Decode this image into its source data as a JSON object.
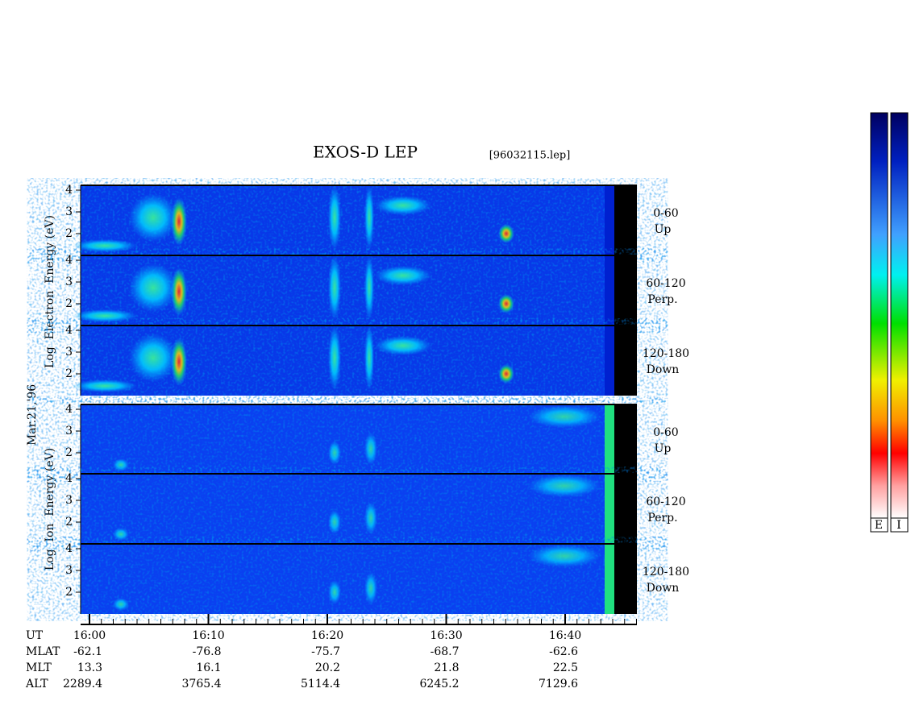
{
  "title": "EXOS-D LEP",
  "file": "[96032115.lep]",
  "date_label": "Mar.21,'96",
  "electron_axis_label": "Log  Electron  Energy (eV)",
  "ion_axis_label": "Log  Ion  Energy (eV)",
  "yticks": [
    2,
    3,
    4
  ],
  "panels": [
    {
      "angle": "0-60",
      "direction": "Up"
    },
    {
      "angle": "60-120",
      "direction": "Perp."
    },
    {
      "angle": "120-180",
      "direction": "Down"
    },
    {
      "angle": "0-60",
      "direction": "Up"
    },
    {
      "angle": "60-120",
      "direction": "Perp."
    },
    {
      "angle": "120-180",
      "direction": "Down"
    }
  ],
  "time_label": "UT",
  "time_ticks": [
    "16:00",
    "16:10",
    "16:20",
    "16:30",
    "16:40"
  ],
  "rows": [
    {
      "label": "MLAT",
      "values": [
        -62.1,
        -76.8,
        -75.7,
        -68.7,
        -62.6
      ]
    },
    {
      "label": "MLT",
      "values": [
        13.3,
        16.1,
        20.2,
        21.8,
        22.5
      ]
    },
    {
      "label": "ALT",
      "values": [
        2289.4,
        3765.4,
        5114.4,
        6245.2,
        7129.6
      ]
    }
  ],
  "colorbar_labels": [
    "E",
    "I"
  ]
}
